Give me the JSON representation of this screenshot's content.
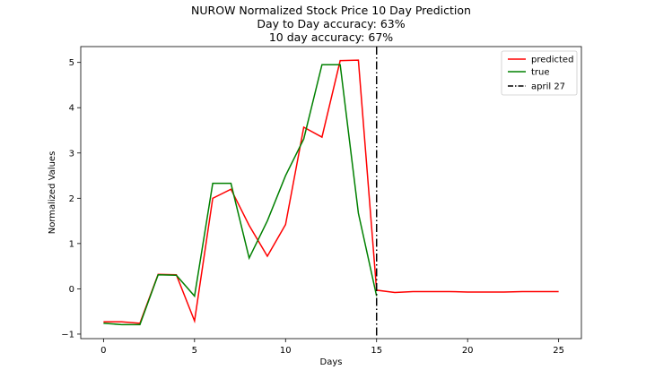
{
  "chart_data": {
    "type": "line",
    "title_lines": [
      "NUROW Normalized Stock Price 10 Day Prediction",
      "Day to Day accuracy: 63%",
      "10 day accuracy: 67%"
    ],
    "xlabel": "Days",
    "ylabel": "Normalized Values",
    "xlim": [
      -1.25,
      26.25
    ],
    "ylim": [
      -1.1,
      5.35
    ],
    "xticks": [
      0,
      5,
      10,
      15,
      20,
      25
    ],
    "yticks": [
      -1,
      0,
      1,
      2,
      3,
      4,
      5
    ],
    "grid": false,
    "legend_position": "top-right",
    "series": [
      {
        "name": "predicted",
        "color": "#ff0000",
        "x": [
          0,
          1,
          2,
          3,
          4,
          5,
          6,
          7,
          8,
          9,
          10,
          11,
          12,
          13,
          14,
          15,
          16,
          17,
          18,
          19,
          20,
          21,
          22,
          23,
          24,
          25
        ],
        "y": [
          -0.73,
          -0.73,
          -0.76,
          0.32,
          0.31,
          -0.71,
          2.0,
          2.2,
          1.4,
          0.72,
          1.42,
          3.57,
          3.35,
          5.04,
          5.05,
          -0.03,
          -0.08,
          -0.06,
          -0.06,
          -0.06,
          -0.07,
          -0.07,
          -0.07,
          -0.06,
          -0.06,
          -0.06
        ]
      },
      {
        "name": "true",
        "color": "#008000",
        "x": [
          0,
          1,
          2,
          3,
          4,
          5,
          6,
          7,
          8,
          9,
          10,
          11,
          12,
          13,
          14,
          15
        ],
        "y": [
          -0.76,
          -0.79,
          -0.79,
          0.31,
          0.3,
          -0.16,
          2.33,
          2.33,
          0.68,
          1.5,
          2.5,
          3.31,
          4.95,
          4.95,
          1.67,
          -0.16
        ]
      }
    ],
    "vline": {
      "name": "april 27",
      "x": 15,
      "color": "#000000",
      "style": "dashdot"
    }
  }
}
